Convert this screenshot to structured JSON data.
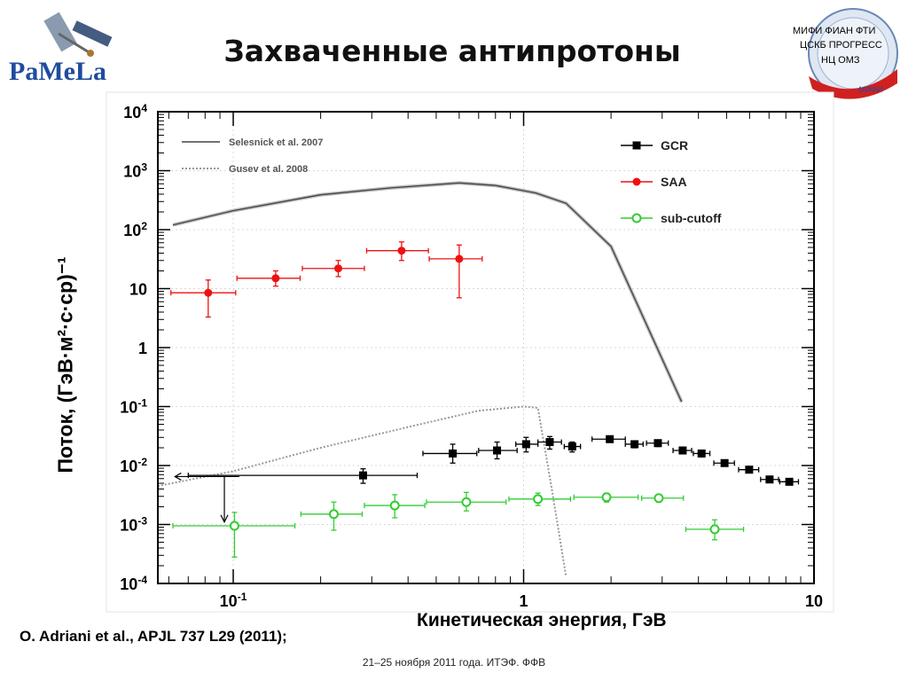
{
  "header": {
    "title": "Захваченные антипротоны",
    "logo_left_text": "PaMeLa",
    "orgs_right": [
      "МИФИ  ФИАН  ФТИ",
      "ЦСКБ  ПРОГРЕСС",
      "НЦ  ОМЗ"
    ],
    "org_seal_text": "МИФИ"
  },
  "citation": "O. Adriani et al., APJL 737 L29 (2011);",
  "footer": "21–25 ноября 2011 года. ИТЭФ. ФФВ",
  "colors": {
    "gcr": "#000000",
    "saa": "#ee1111",
    "subcutoff": "#33cc33",
    "model": "#999999"
  },
  "chart_data": {
    "type": "scatter",
    "xlabel": "Кинетическая энергия, ГэВ",
    "ylabel": "Поток, (ГэВ·м²·с·ср)⁻¹",
    "xscale": "log",
    "yscale": "log",
    "xlim": [
      0.055,
      10
    ],
    "ylim": [
      0.0001,
      10000
    ],
    "x_ticks": [
      {
        "value": 0.1,
        "label": "10-1",
        "base": "10",
        "exp": "-1"
      },
      {
        "value": 1,
        "label": "1",
        "base": "1",
        "exp": ""
      },
      {
        "value": 10,
        "label": "10",
        "base": "10",
        "exp": ""
      }
    ],
    "y_ticks": [
      {
        "value": 0.0001,
        "label": "10-4",
        "base": "10",
        "exp": "-4"
      },
      {
        "value": 0.001,
        "label": "10-3",
        "base": "10",
        "exp": "-3"
      },
      {
        "value": 0.01,
        "label": "10-2",
        "base": "10",
        "exp": "-2"
      },
      {
        "value": 0.1,
        "label": "10-1",
        "base": "10",
        "exp": "-1"
      },
      {
        "value": 1,
        "label": "1",
        "base": "1",
        "exp": ""
      },
      {
        "value": 10,
        "label": "10",
        "base": "10",
        "exp": ""
      },
      {
        "value": 100,
        "label": "102",
        "base": "10",
        "exp": "2"
      },
      {
        "value": 1000,
        "label": "103",
        "base": "10",
        "exp": "3"
      },
      {
        "value": 10000,
        "label": "104",
        "base": "10",
        "exp": "4"
      }
    ],
    "legend_position": "top-right",
    "model_legend_position": "top-left",
    "series": [
      {
        "name": "GCR",
        "marker": "square",
        "color": "#000000",
        "points": [
          {
            "x": 0.28,
            "y": 0.0068,
            "xlo": 0.07,
            "xhi": 0.43,
            "ylo": 0.005,
            "yhi": 0.0088
          },
          {
            "x": 0.57,
            "y": 0.016,
            "xlo": 0.45,
            "xhi": 0.69,
            "ylo": 0.011,
            "yhi": 0.023
          },
          {
            "x": 0.81,
            "y": 0.018,
            "xlo": 0.7,
            "xhi": 0.95,
            "ylo": 0.013,
            "yhi": 0.025
          },
          {
            "x": 1.02,
            "y": 0.023,
            "xlo": 0.94,
            "xhi": 1.12,
            "ylo": 0.017,
            "yhi": 0.03
          },
          {
            "x": 1.23,
            "y": 0.025,
            "xlo": 1.12,
            "xhi": 1.35,
            "ylo": 0.019,
            "yhi": 0.031
          },
          {
            "x": 1.47,
            "y": 0.021,
            "xlo": 1.38,
            "xhi": 1.57,
            "ylo": 0.017,
            "yhi": 0.025
          },
          {
            "x": 1.98,
            "y": 0.028,
            "xlo": 1.72,
            "xhi": 2.24,
            "ylo": 0.025,
            "yhi": 0.031
          },
          {
            "x": 2.41,
            "y": 0.023,
            "xlo": 2.24,
            "xhi": 2.58,
            "ylo": 0.02,
            "yhi": 0.026
          },
          {
            "x": 2.9,
            "y": 0.024,
            "xlo": 2.65,
            "xhi": 3.15,
            "ylo": 0.021,
            "yhi": 0.027
          },
          {
            "x": 3.53,
            "y": 0.018,
            "xlo": 3.27,
            "xhi": 3.79,
            "ylo": 0.016,
            "yhi": 0.02
          },
          {
            "x": 4.1,
            "y": 0.016,
            "xlo": 3.84,
            "xhi": 4.38,
            "ylo": 0.014,
            "yhi": 0.018
          },
          {
            "x": 4.92,
            "y": 0.011,
            "xlo": 4.52,
            "xhi": 5.32,
            "ylo": 0.01,
            "yhi": 0.012
          },
          {
            "x": 5.98,
            "y": 0.0085,
            "xlo": 5.5,
            "xhi": 6.45,
            "ylo": 0.0077,
            "yhi": 0.0093
          },
          {
            "x": 7.03,
            "y": 0.0058,
            "xlo": 6.55,
            "xhi": 7.55,
            "ylo": 0.0053,
            "yhi": 0.0063
          },
          {
            "x": 8.22,
            "y": 0.0053,
            "xlo": 7.62,
            "xhi": 8.84,
            "ylo": 0.0049,
            "yhi": 0.0057
          }
        ]
      },
      {
        "name": "SAA",
        "marker": "circle",
        "color": "#ee1111",
        "points": [
          {
            "x": 0.082,
            "y": 8.5,
            "xlo": 0.061,
            "xhi": 0.102,
            "ylo": 3.3,
            "yhi": 14
          },
          {
            "x": 0.14,
            "y": 15,
            "xlo": 0.103,
            "xhi": 0.17,
            "ylo": 11,
            "yhi": 20
          },
          {
            "x": 0.23,
            "y": 22,
            "xlo": 0.173,
            "xhi": 0.283,
            "ylo": 16,
            "yhi": 30
          },
          {
            "x": 0.38,
            "y": 44,
            "xlo": 0.288,
            "xhi": 0.47,
            "ylo": 30,
            "yhi": 62
          },
          {
            "x": 0.6,
            "y": 32,
            "xlo": 0.473,
            "xhi": 0.72,
            "ylo": 7.0,
            "yhi": 55
          }
        ]
      },
      {
        "name": "sub-cutoff",
        "marker": "open-circle",
        "color": "#33cc33",
        "points": [
          {
            "x": 0.101,
            "y": 0.00095,
            "xlo": 0.062,
            "xhi": 0.163,
            "ylo": 0.00028,
            "yhi": 0.0016
          },
          {
            "x": 0.222,
            "y": 0.0015,
            "xlo": 0.171,
            "xhi": 0.278,
            "ylo": 0.0008,
            "yhi": 0.0024
          },
          {
            "x": 0.36,
            "y": 0.0021,
            "xlo": 0.283,
            "xhi": 0.457,
            "ylo": 0.0013,
            "yhi": 0.0032
          },
          {
            "x": 0.635,
            "y": 0.0024,
            "xlo": 0.463,
            "xhi": 0.87,
            "ylo": 0.0017,
            "yhi": 0.0035
          },
          {
            "x": 1.12,
            "y": 0.0027,
            "xlo": 0.89,
            "xhi": 1.45,
            "ylo": 0.0021,
            "yhi": 0.0034
          },
          {
            "x": 1.93,
            "y": 0.0029,
            "xlo": 1.49,
            "xhi": 2.48,
            "ylo": 0.0024,
            "yhi": 0.0034
          },
          {
            "x": 2.92,
            "y": 0.0028,
            "xlo": 2.55,
            "xhi": 3.55,
            "ylo": 0.0024,
            "yhi": 0.0032
          },
          {
            "x": 4.55,
            "y": 0.00083,
            "xlo": 3.62,
            "xhi": 5.72,
            "ylo": 0.00055,
            "yhi": 0.0012
          }
        ]
      }
    ],
    "models": [
      {
        "name": "Selesnick et al. 2007",
        "style": "solid",
        "points": [
          [
            0.062,
            120
          ],
          [
            0.1,
            210
          ],
          [
            0.2,
            390
          ],
          [
            0.35,
            510
          ],
          [
            0.6,
            620
          ],
          [
            0.8,
            560
          ],
          [
            1.1,
            420
          ],
          [
            1.4,
            280
          ],
          [
            2.0,
            52
          ],
          [
            3.5,
            0.12
          ]
        ]
      },
      {
        "name": "Gusev et al. 2008",
        "style": "dotted",
        "points": [
          [
            0.055,
            0.0045
          ],
          [
            0.1,
            0.008
          ],
          [
            0.2,
            0.02
          ],
          [
            0.4,
            0.045
          ],
          [
            0.7,
            0.085
          ],
          [
            1.0,
            0.1
          ],
          [
            1.12,
            0.095
          ],
          [
            1.25,
            0.004
          ],
          [
            1.4,
            0.00013
          ]
        ]
      }
    ],
    "upper_limit": {
      "x": 0.063,
      "x_end": 0.105,
      "y": 0.0065,
      "arrow_to_y": 0.0011,
      "arrow_x": 0.1
    }
  }
}
